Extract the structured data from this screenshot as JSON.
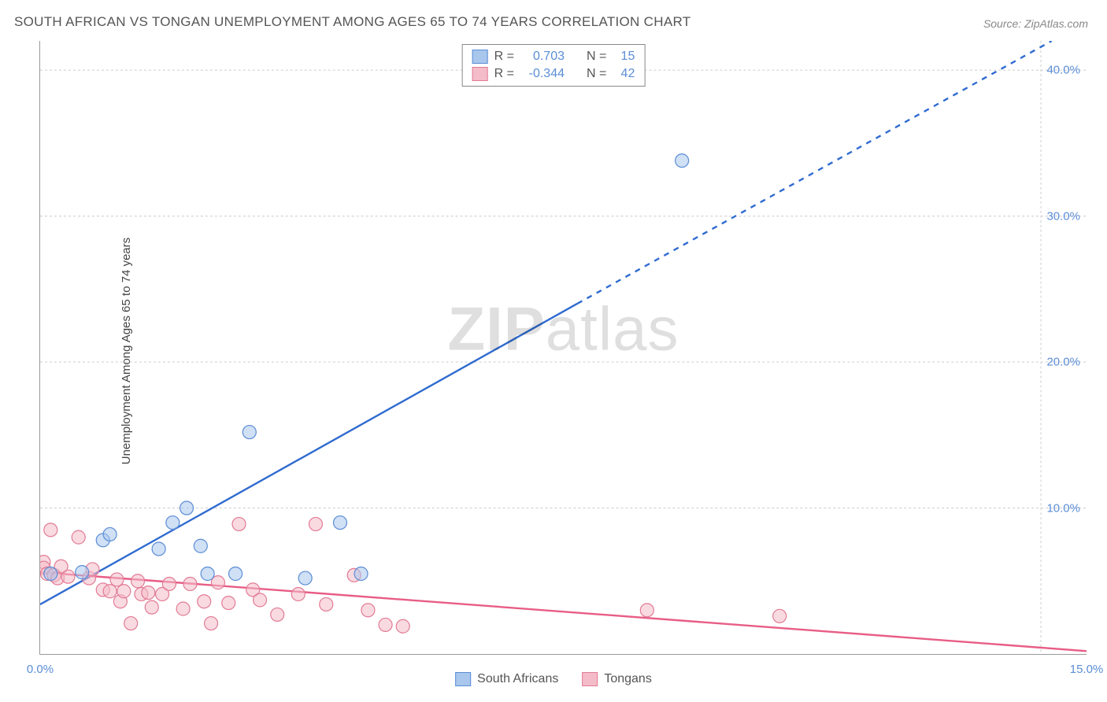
{
  "title": "SOUTH AFRICAN VS TONGAN UNEMPLOYMENT AMONG AGES 65 TO 74 YEARS CORRELATION CHART",
  "source": "Source: ZipAtlas.com",
  "y_axis_label": "Unemployment Among Ages 65 to 74 years",
  "watermark": {
    "part1": "ZIP",
    "part2": "atlas"
  },
  "chart": {
    "type": "scatter",
    "background_color": "#ffffff",
    "grid_color": "#cccccc",
    "grid_dash": "3,3",
    "axis_color": "#999999",
    "tick_label_color": "#5b8dd6",
    "tick_fontsize": 15,
    "title_fontsize": 17,
    "title_color": "#555555",
    "xlim": [
      0,
      15
    ],
    "ylim": [
      0,
      42
    ],
    "x_ticks": [
      0.0,
      15.0
    ],
    "x_tick_labels": [
      "0.0%",
      "15.0%"
    ],
    "y_ticks": [
      10.0,
      20.0,
      30.0,
      40.0
    ],
    "y_tick_labels": [
      "10.0%",
      "20.0%",
      "30.0%",
      "40.0%"
    ],
    "marker_radius": 8.5,
    "marker_opacity": 0.55,
    "marker_stroke_width": 1.2,
    "line_width": 2.4,
    "series": [
      {
        "name": "South Africans",
        "color_fill": "#a9c6ec",
        "color_stroke": "#5b8dd6",
        "line_color": "#2f6bd0",
        "R": "0.703",
        "N": "15",
        "points": [
          [
            0.15,
            5.5
          ],
          [
            0.6,
            5.6
          ],
          [
            0.9,
            7.8
          ],
          [
            1.0,
            8.2
          ],
          [
            1.7,
            7.2
          ],
          [
            1.9,
            9.0
          ],
          [
            2.1,
            10.0
          ],
          [
            2.3,
            7.4
          ],
          [
            2.8,
            5.5
          ],
          [
            3.0,
            15.2
          ],
          [
            3.8,
            5.2
          ],
          [
            4.3,
            9.0
          ],
          [
            4.6,
            5.5
          ],
          [
            9.2,
            33.8
          ],
          [
            2.4,
            5.5
          ]
        ],
        "trend_solid": {
          "x1": 0.0,
          "y1": 3.4,
          "x2": 7.7,
          "y2": 24.0
        },
        "trend_dashed": {
          "x1": 7.7,
          "y1": 24.0,
          "x2": 14.5,
          "y2": 42.0
        }
      },
      {
        "name": "Tongans",
        "color_fill": "#f4bcc8",
        "color_stroke": "#e27b94",
        "line_color": "#e85d86",
        "R": "-0.344",
        "N": "42",
        "points": [
          [
            0.05,
            6.3
          ],
          [
            0.05,
            5.9
          ],
          [
            0.1,
            5.5
          ],
          [
            0.15,
            8.5
          ],
          [
            0.2,
            5.4
          ],
          [
            0.25,
            5.2
          ],
          [
            0.4,
            5.3
          ],
          [
            0.55,
            8.0
          ],
          [
            0.7,
            5.2
          ],
          [
            0.75,
            5.8
          ],
          [
            0.9,
            4.4
          ],
          [
            1.0,
            4.3
          ],
          [
            1.1,
            5.1
          ],
          [
            1.15,
            3.6
          ],
          [
            1.2,
            4.3
          ],
          [
            1.3,
            2.1
          ],
          [
            1.4,
            5.0
          ],
          [
            1.45,
            4.1
          ],
          [
            1.55,
            4.2
          ],
          [
            1.6,
            3.2
          ],
          [
            1.75,
            4.1
          ],
          [
            1.85,
            4.8
          ],
          [
            2.05,
            3.1
          ],
          [
            2.15,
            4.8
          ],
          [
            2.35,
            3.6
          ],
          [
            2.45,
            2.1
          ],
          [
            2.55,
            4.9
          ],
          [
            2.7,
            3.5
          ],
          [
            2.85,
            8.9
          ],
          [
            3.05,
            4.4
          ],
          [
            3.15,
            3.7
          ],
          [
            3.4,
            2.7
          ],
          [
            3.7,
            4.1
          ],
          [
            3.95,
            8.9
          ],
          [
            4.1,
            3.4
          ],
          [
            4.5,
            5.4
          ],
          [
            4.7,
            3.0
          ],
          [
            4.95,
            2.0
          ],
          [
            5.2,
            1.9
          ],
          [
            8.7,
            3.0
          ],
          [
            10.6,
            2.6
          ],
          [
            0.3,
            6.0
          ]
        ],
        "trend_solid": {
          "x1": 0.0,
          "y1": 5.6,
          "x2": 15.0,
          "y2": 0.2
        },
        "trend_dashed": null
      }
    ]
  },
  "legend_top": {
    "border_color": "#888888",
    "background": "#ffffff",
    "rows": [
      {
        "swatch_fill": "#a9c6ec",
        "swatch_stroke": "#5b8dd6",
        "r_label": "R =",
        "r_value": "0.703",
        "n_label": "N =",
        "n_value": "15"
      },
      {
        "swatch_fill": "#f4bcc8",
        "swatch_stroke": "#e27b94",
        "r_label": "R =",
        "r_value": "-0.344",
        "n_label": "N =",
        "n_value": "42"
      }
    ]
  },
  "legend_bottom": {
    "items": [
      {
        "swatch_fill": "#a9c6ec",
        "swatch_stroke": "#5b8dd6",
        "label": "South Africans"
      },
      {
        "swatch_fill": "#f4bcc8",
        "swatch_stroke": "#e27b94",
        "label": "Tongans"
      }
    ]
  }
}
